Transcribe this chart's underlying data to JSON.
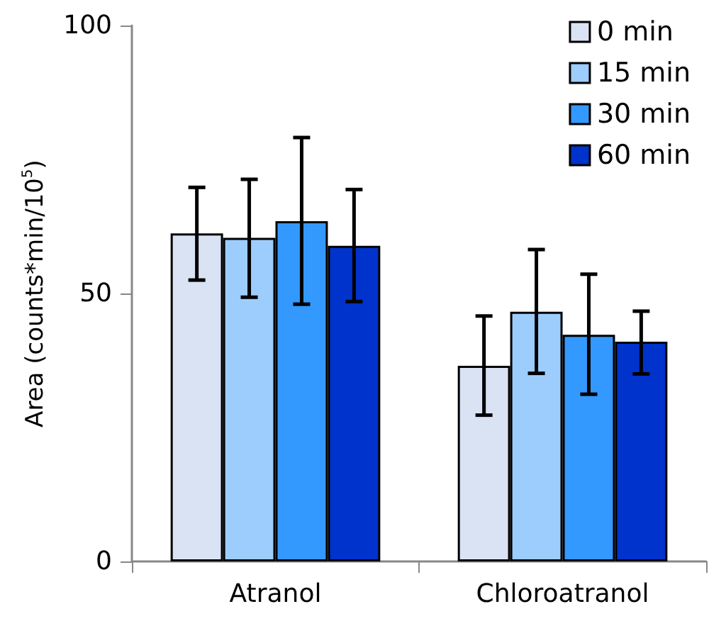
{
  "chart_data": {
    "type": "bar",
    "ylabel": "Area (counts*min/10$^{5}$)",
    "categories": [
      "Atranol",
      "Chloroatranol"
    ],
    "series": [
      {
        "name": "0 min",
        "color": "#dae3f3",
        "values": [
          61.2,
          36.5
        ],
        "errors": [
          [
            52.5,
            69.8
          ],
          [
            27.3,
            45.8
          ]
        ]
      },
      {
        "name": "15 min",
        "color": "#9dcdfc",
        "values": [
          60.4,
          46.6
        ],
        "errors": [
          [
            49.3,
            71.3
          ],
          [
            35.1,
            58.2
          ]
        ]
      },
      {
        "name": "30 min",
        "color": "#3399ff",
        "values": [
          63.5,
          42.3
        ],
        "errors": [
          [
            48.0,
            79.1
          ],
          [
            31.2,
            53.6
          ]
        ]
      },
      {
        "name": "60 min",
        "color": "#0033cc",
        "values": [
          58.9,
          41.0
        ],
        "errors": [
          [
            48.5,
            69.4
          ],
          [
            35.0,
            46.7
          ]
        ]
      }
    ],
    "ylim": [
      0,
      100
    ],
    "yticks": [
      0,
      50,
      100
    ],
    "grid": false,
    "legend": "top right"
  }
}
